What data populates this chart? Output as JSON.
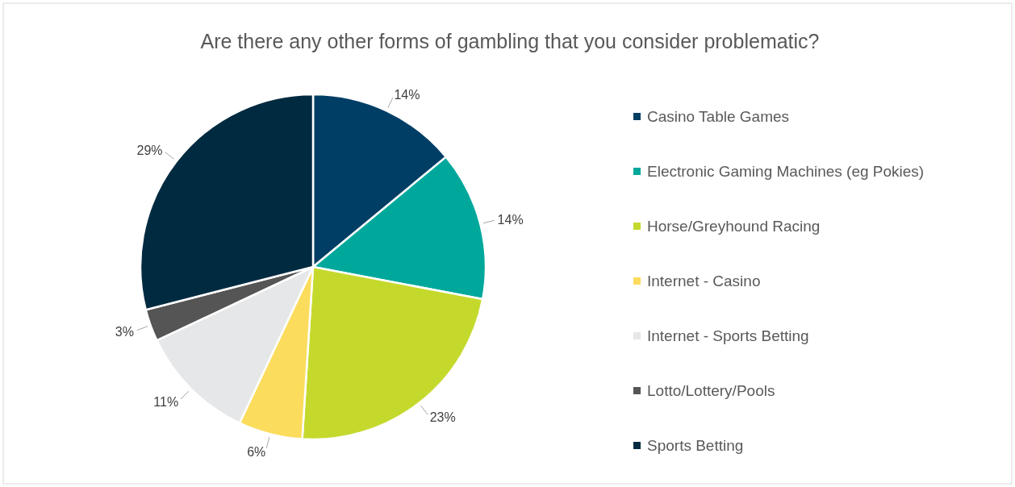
{
  "chart_data": {
    "type": "pie",
    "title": "Are there any other forms of gambling that you consider problematic?",
    "categories": [
      "Casino Table Games",
      "Electronic Gaming Machines (eg Pokies)",
      "Horse/Greyhound Racing",
      "Internet - Casino",
      "Internet - Sports Betting",
      "Lotto/Lottery/Pools",
      "Sports Betting"
    ],
    "values": [
      14,
      14,
      23,
      6,
      11,
      3,
      29
    ],
    "colors": [
      "#003e65",
      "#00a89c",
      "#c5d92d",
      "#fcdc5c",
      "#e6e7e8",
      "#555555",
      "#002a40"
    ],
    "value_labels": [
      "14%",
      "14%",
      "23%",
      "6%",
      "11%",
      "3%",
      "29%"
    ],
    "legend": "right"
  }
}
